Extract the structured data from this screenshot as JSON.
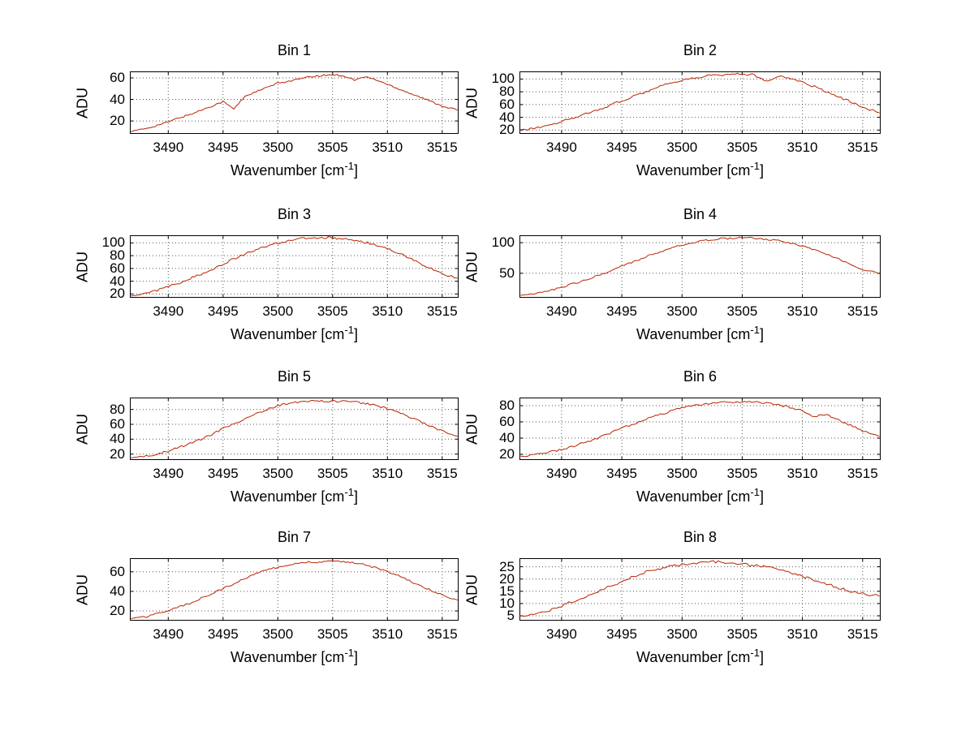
{
  "figure": {
    "background": "#ffffff",
    "grid_color": "#555555",
    "axes_color": "#000000"
  },
  "chart_data": [
    {
      "type": "line",
      "title": "Bin 1",
      "xlabel": "Wavenumber [cm⁻¹]",
      "ylabel": "ADU",
      "xlim": [
        3486.5,
        3516.5
      ],
      "ylim": [
        8,
        66
      ],
      "xticks": [
        3490,
        3495,
        3500,
        3505,
        3510,
        3515
      ],
      "yticks": [
        20,
        40,
        60
      ],
      "grid": true,
      "legend": "none",
      "line_color": "#bb2200",
      "noise": 0.8,
      "x": [
        3486.6,
        3488,
        3489,
        3490,
        3491,
        3492,
        3493,
        3494,
        3495,
        3496,
        3497,
        3498,
        3499,
        3500,
        3501,
        3502,
        3503,
        3504,
        3505,
        3506,
        3507,
        3508,
        3509,
        3510,
        3511,
        3512,
        3513,
        3514,
        3515,
        3516.4
      ],
      "y": [
        10,
        13,
        16,
        19,
        23,
        26,
        30,
        34,
        38,
        31,
        43,
        47,
        51,
        55,
        57,
        59,
        61,
        62,
        63,
        62,
        58,
        61,
        58,
        54,
        50,
        46,
        42,
        38,
        34,
        30
      ]
    },
    {
      "type": "line",
      "title": "Bin 2",
      "xlabel": "Wavenumber [cm⁻¹]",
      "ylabel": "ADU",
      "xlim": [
        3486.5,
        3516.5
      ],
      "ylim": [
        14,
        112
      ],
      "xticks": [
        3490,
        3495,
        3500,
        3505,
        3510,
        3515
      ],
      "yticks": [
        20,
        40,
        60,
        80,
        100
      ],
      "grid": true,
      "legend": "none",
      "line_color": "#bb2200",
      "noise": 1.8,
      "x": [
        3486.6,
        3488,
        3489,
        3490,
        3491,
        3492,
        3493,
        3494,
        3495,
        3496,
        3497,
        3498,
        3499,
        3500,
        3501,
        3502,
        3503,
        3504,
        3505,
        3506,
        3507,
        3508,
        3509,
        3510,
        3511,
        3512,
        3513,
        3514,
        3515,
        3516.4
      ],
      "y": [
        19,
        24,
        28,
        33,
        39,
        45,
        52,
        59,
        66,
        73,
        80,
        87,
        93,
        98,
        102,
        105,
        107,
        107,
        108,
        107,
        96,
        104,
        101,
        95,
        88,
        80,
        72,
        64,
        56,
        47
      ]
    },
    {
      "type": "line",
      "title": "Bin 3",
      "xlabel": "Wavenumber [cm⁻¹]",
      "ylabel": "ADU",
      "xlim": [
        3486.5,
        3516.5
      ],
      "ylim": [
        14,
        112
      ],
      "xticks": [
        3490,
        3495,
        3500,
        3505,
        3510,
        3515
      ],
      "yticks": [
        20,
        40,
        60,
        80,
        100
      ],
      "grid": true,
      "legend": "none",
      "line_color": "#bb2200",
      "noise": 1.8,
      "x": [
        3486.6,
        3488,
        3489,
        3490,
        3491,
        3492,
        3493,
        3494,
        3495,
        3496,
        3497,
        3498,
        3499,
        3500,
        3501,
        3502,
        3503,
        3504,
        3505,
        3506,
        3507,
        3508,
        3509,
        3510,
        3511,
        3512,
        3513,
        3514,
        3515,
        3516.4
      ],
      "y": [
        17,
        22,
        26,
        31,
        37,
        44,
        51,
        59,
        67,
        75,
        82,
        89,
        95,
        100,
        104,
        107,
        108,
        108,
        108,
        106,
        104,
        101,
        97,
        91,
        84,
        76,
        68,
        60,
        52,
        45
      ]
    },
    {
      "type": "line",
      "title": "Bin 4",
      "xlabel": "Wavenumber [cm⁻¹]",
      "ylabel": "ADU",
      "xlim": [
        3486.5,
        3516.5
      ],
      "ylim": [
        10,
        112
      ],
      "xticks": [
        3490,
        3495,
        3500,
        3505,
        3510,
        3515
      ],
      "yticks": [
        50,
        100
      ],
      "grid": true,
      "legend": "none",
      "line_color": "#bb2200",
      "noise": 1.5,
      "x": [
        3486.6,
        3488,
        3489,
        3490,
        3491,
        3492,
        3493,
        3494,
        3495,
        3496,
        3497,
        3498,
        3499,
        3500,
        3501,
        3502,
        3503,
        3504,
        3505,
        3506,
        3507,
        3508,
        3509,
        3510,
        3511,
        3512,
        3513,
        3514,
        3515,
        3516.4
      ],
      "y": [
        14,
        18,
        22,
        27,
        33,
        39,
        46,
        54,
        62,
        69,
        77,
        84,
        90,
        96,
        100,
        104,
        106,
        107,
        108,
        107,
        105,
        103,
        99,
        94,
        88,
        81,
        73,
        65,
        57,
        49
      ]
    },
    {
      "type": "line",
      "title": "Bin 5",
      "xlabel": "Wavenumber [cm⁻¹]",
      "ylabel": "ADU",
      "xlim": [
        3486.5,
        3516.5
      ],
      "ylim": [
        12,
        96
      ],
      "xticks": [
        3490,
        3495,
        3500,
        3505,
        3510,
        3515
      ],
      "yticks": [
        20,
        40,
        60,
        80
      ],
      "grid": true,
      "legend": "none",
      "line_color": "#bb2200",
      "noise": 1.3,
      "x": [
        3486.6,
        3488,
        3489,
        3490,
        3491,
        3492,
        3493,
        3494,
        3495,
        3496,
        3497,
        3498,
        3499,
        3500,
        3501,
        3502,
        3503,
        3504,
        3505,
        3506,
        3507,
        3508,
        3509,
        3510,
        3511,
        3512,
        3513,
        3514,
        3515,
        3516.4
      ],
      "y": [
        14,
        17,
        20,
        24,
        29,
        34,
        40,
        47,
        54,
        61,
        67,
        74,
        80,
        85,
        88,
        90,
        91,
        91,
        91,
        91,
        90,
        88,
        85,
        81,
        76,
        70,
        64,
        57,
        51,
        44
      ]
    },
    {
      "type": "line",
      "title": "Bin 6",
      "xlabel": "Wavenumber [cm⁻¹]",
      "ylabel": "ADU",
      "xlim": [
        3486.5,
        3516.5
      ],
      "ylim": [
        13,
        90
      ],
      "xticks": [
        3490,
        3495,
        3500,
        3505,
        3510,
        3515
      ],
      "yticks": [
        20,
        40,
        60,
        80
      ],
      "grid": true,
      "legend": "none",
      "line_color": "#bb2200",
      "noise": 1.3,
      "x": [
        3486.6,
        3488,
        3489,
        3490,
        3491,
        3492,
        3493,
        3494,
        3495,
        3496,
        3497,
        3498,
        3499,
        3500,
        3501,
        3502,
        3503,
        3504,
        3505,
        3506,
        3507,
        3508,
        3509,
        3510,
        3511,
        3512,
        3513,
        3514,
        3515,
        3516.4
      ],
      "y": [
        17,
        20,
        23,
        26,
        30,
        35,
        40,
        46,
        52,
        58,
        63,
        68,
        73,
        77,
        80,
        82,
        84,
        84,
        85,
        84,
        83,
        81,
        78,
        74,
        66,
        70,
        62,
        56,
        49,
        42
      ]
    },
    {
      "type": "line",
      "title": "Bin 7",
      "xlabel": "Wavenumber [cm⁻¹]",
      "ylabel": "ADU",
      "xlim": [
        3486.5,
        3516.5
      ],
      "ylim": [
        10,
        74
      ],
      "xticks": [
        3490,
        3495,
        3500,
        3505,
        3510,
        3515
      ],
      "yticks": [
        20,
        40,
        60
      ],
      "grid": true,
      "legend": "none",
      "line_color": "#bb2200",
      "noise": 0.9,
      "x": [
        3486.6,
        3488,
        3489,
        3490,
        3491,
        3492,
        3493,
        3494,
        3495,
        3496,
        3497,
        3498,
        3499,
        3500,
        3501,
        3502,
        3503,
        3504,
        3505,
        3506,
        3507,
        3508,
        3509,
        3510,
        3511,
        3512,
        3513,
        3514,
        3515,
        3516.4
      ],
      "y": [
        12,
        14,
        17,
        20,
        24,
        28,
        33,
        38,
        43,
        48,
        53,
        58,
        62,
        65,
        67,
        69,
        70,
        70,
        71,
        70,
        69,
        67,
        64,
        60,
        56,
        51,
        46,
        41,
        36,
        31
      ]
    },
    {
      "type": "line",
      "title": "Bin 8",
      "xlabel": "Wavenumber [cm⁻¹]",
      "ylabel": "ADU",
      "xlim": [
        3486.5,
        3516.5
      ],
      "ylim": [
        3,
        28.5
      ],
      "xticks": [
        3490,
        3495,
        3500,
        3505,
        3510,
        3515
      ],
      "yticks": [
        5,
        10,
        15,
        20,
        25
      ],
      "grid": true,
      "legend": "none",
      "line_color": "#bb2200",
      "noise": 0.55,
      "x": [
        3486.6,
        3488,
        3489,
        3490,
        3491,
        3492,
        3493,
        3494,
        3495,
        3496,
        3497,
        3498,
        3499,
        3500,
        3501,
        3502,
        3503,
        3504,
        3505,
        3506,
        3507,
        3508,
        3509,
        3510,
        3511,
        3512,
        3513,
        3514,
        3515,
        3516.4
      ],
      "y": [
        5,
        6,
        7,
        9,
        11,
        13,
        15,
        17,
        19,
        21,
        23,
        24,
        25,
        26,
        26.5,
        27,
        27,
        26.5,
        26,
        25.5,
        25,
        24,
        22.5,
        21,
        19.5,
        18,
        16.5,
        15,
        14,
        13
      ]
    }
  ]
}
